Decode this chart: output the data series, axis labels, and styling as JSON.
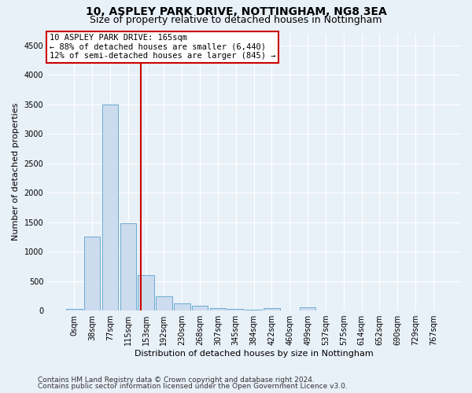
{
  "title": "10, ASPLEY PARK DRIVE, NOTTINGHAM, NG8 3EA",
  "subtitle": "Size of property relative to detached houses in Nottingham",
  "xlabel": "Distribution of detached houses by size in Nottingham",
  "ylabel": "Number of detached properties",
  "bin_labels": [
    "0sqm",
    "38sqm",
    "77sqm",
    "115sqm",
    "153sqm",
    "192sqm",
    "230sqm",
    "268sqm",
    "307sqm",
    "345sqm",
    "384sqm",
    "422sqm",
    "460sqm",
    "499sqm",
    "537sqm",
    "575sqm",
    "614sqm",
    "652sqm",
    "690sqm",
    "729sqm",
    "767sqm"
  ],
  "bar_heights": [
    25,
    1250,
    3500,
    1480,
    600,
    240,
    115,
    75,
    45,
    25,
    18,
    45,
    0,
    55,
    0,
    0,
    0,
    0,
    0,
    0,
    0
  ],
  "vline_x": 3.72,
  "bar_color": "#ccdcee",
  "bar_edge_color": "#6aabd2",
  "vline_color": "#cc0000",
  "annotation_text": "10 ASPLEY PARK DRIVE: 165sqm\n← 88% of detached houses are smaller (6,440)\n12% of semi-detached houses are larger (845) →",
  "annotation_box_color": "#ffffff",
  "annotation_box_edge": "#cc0000",
  "ylim": [
    0,
    4700
  ],
  "yticks": [
    0,
    500,
    1000,
    1500,
    2000,
    2500,
    3000,
    3500,
    4000,
    4500
  ],
  "footer_line1": "Contains HM Land Registry data © Crown copyright and database right 2024.",
  "footer_line2": "Contains public sector information licensed under the Open Government Licence v3.0.",
  "bg_color": "#e8f0f8",
  "plot_bg_color": "#e8f0f8",
  "grid_color": "#ffffff",
  "title_fontsize": 10,
  "subtitle_fontsize": 9,
  "axis_label_fontsize": 8,
  "tick_fontsize": 7,
  "annotation_fontsize": 7.5,
  "footer_fontsize": 6.5
}
